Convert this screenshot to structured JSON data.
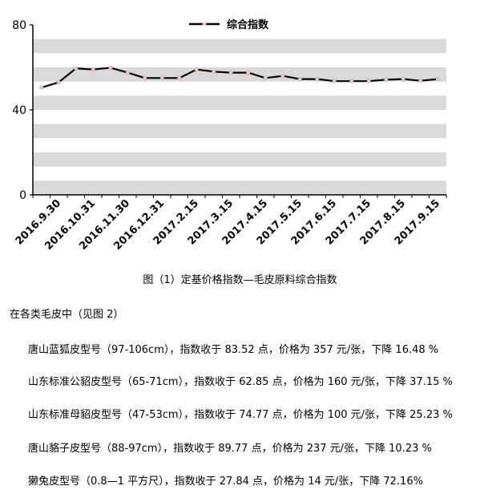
{
  "chart_data": {
    "type": "line",
    "title": "",
    "xlabel": "",
    "ylabel": "",
    "ylim": [
      0,
      80
    ],
    "yticks": [
      0,
      40,
      80
    ],
    "grid": "alternating horizontal bands",
    "legend_placement": "top-center",
    "tick_labels": [
      "2016.9.30",
      "2016.10.31",
      "2016.11.30",
      "2016.12.31",
      "2017.2.15",
      "2017.3.15",
      "2017.4.15",
      "2017.5.15",
      "2017.6.15",
      "2017.7.15",
      "2017.8.15",
      "2017.9.15"
    ],
    "series": [
      {
        "name": "综合指数",
        "color": "#000000",
        "marker_color": "#f4c7c7",
        "values": [
          50.5,
          53,
          59.5,
          59,
          59.8,
          57.5,
          55,
          55,
          55,
          59,
          58,
          57.5,
          57.5,
          55,
          56,
          54.5,
          54.5,
          53.5,
          53.5,
          53.5,
          54.2,
          54.5,
          53.7,
          54.5
        ]
      }
    ]
  },
  "caption": "图（1）定基价格指数—毛皮原料综合指数",
  "intro": "在各类毛皮中（见图 2）",
  "items": [
    "唐山蓝狐皮型号（97-106cm），指数收于 83.52 点，价格为 357 元/张，下降 16.48 %",
    "山东标准公貂皮型号（65-71cm），指数收于 62.85 点，价格为 160 元/张，下降 37.15 %",
    "山东标准母貂皮型号（47-53cm），指数收于 74.77 点，价格为 100 元/张，下降 25.23 %",
    "唐山貉子皮型号（88-97cm），指数收于 89.77 点，价格为 237 元/张，下降 10.23 %",
    "獭兔皮型号（0.8—1 平方尺），指数收于 27.84 点，价格为 14 元/张，下降 72.16%"
  ]
}
